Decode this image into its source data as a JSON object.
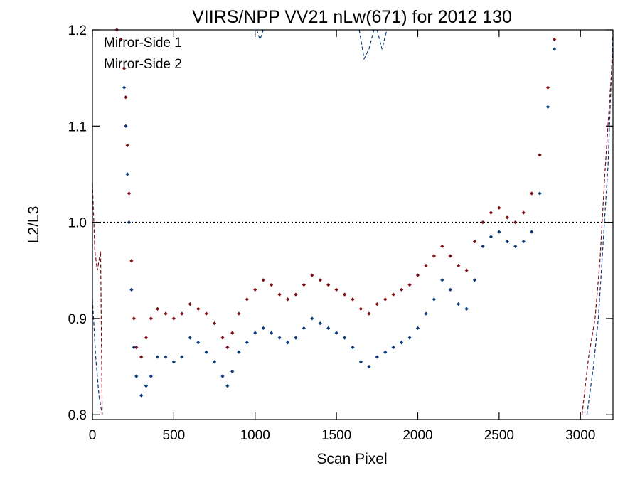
{
  "chart_data": {
    "type": "scatter",
    "title": "VIIRS/NPP VV21 nLw(671) for 2012 130",
    "xlabel": "Scan Pixel",
    "ylabel": "L2/L3",
    "xlim": [
      0,
      3200
    ],
    "ylim": [
      0.795,
      1.2
    ],
    "x_ticks": [
      0,
      500,
      1000,
      1500,
      2000,
      2500,
      3000
    ],
    "x_tick_labels": [
      "0",
      "500",
      "1000",
      "1500",
      "2000",
      "2500",
      "3000"
    ],
    "y_ticks": [
      0.8,
      0.9,
      1.0,
      1.1,
      1.2
    ],
    "y_tick_labels": [
      "0.8",
      "0.9",
      "1.0",
      "1.1",
      "1.2"
    ],
    "reference_line": 1.0,
    "grid": false,
    "legend_position": "top-left",
    "series": [
      {
        "name": "Mirror-Side 1",
        "color": "#0b3a7a",
        "points": [
          [
            150,
            1.2
          ],
          [
            175,
            1.19
          ],
          [
            195,
            1.14
          ],
          [
            205,
            1.1
          ],
          [
            215,
            1.05
          ],
          [
            225,
            1.0
          ],
          [
            240,
            0.93
          ],
          [
            255,
            0.87
          ],
          [
            270,
            0.84
          ],
          [
            300,
            0.82
          ],
          [
            330,
            0.83
          ],
          [
            360,
            0.84
          ],
          [
            400,
            0.86
          ],
          [
            450,
            0.86
          ],
          [
            500,
            0.855
          ],
          [
            550,
            0.86
          ],
          [
            600,
            0.88
          ],
          [
            650,
            0.875
          ],
          [
            700,
            0.865
          ],
          [
            750,
            0.855
          ],
          [
            800,
            0.84
          ],
          [
            830,
            0.83
          ],
          [
            860,
            0.845
          ],
          [
            900,
            0.865
          ],
          [
            950,
            0.875
          ],
          [
            1000,
            0.885
          ],
          [
            1050,
            0.89
          ],
          [
            1100,
            0.885
          ],
          [
            1150,
            0.88
          ],
          [
            1200,
            0.875
          ],
          [
            1250,
            0.88
          ],
          [
            1300,
            0.89
          ],
          [
            1350,
            0.9
          ],
          [
            1400,
            0.895
          ],
          [
            1450,
            0.89
          ],
          [
            1500,
            0.885
          ],
          [
            1550,
            0.88
          ],
          [
            1600,
            0.87
          ],
          [
            1650,
            0.855
          ],
          [
            1700,
            0.85
          ],
          [
            1750,
            0.86
          ],
          [
            1800,
            0.865
          ],
          [
            1850,
            0.87
          ],
          [
            1900,
            0.875
          ],
          [
            1950,
            0.88
          ],
          [
            2000,
            0.89
          ],
          [
            2050,
            0.905
          ],
          [
            2100,
            0.92
          ],
          [
            2150,
            0.94
          ],
          [
            2200,
            0.93
          ],
          [
            2250,
            0.915
          ],
          [
            2300,
            0.91
          ],
          [
            2350,
            0.94
          ],
          [
            2400,
            0.975
          ],
          [
            2450,
            0.985
          ],
          [
            2500,
            0.99
          ],
          [
            2550,
            0.98
          ],
          [
            2600,
            0.975
          ],
          [
            2650,
            0.98
          ],
          [
            2700,
            0.99
          ],
          [
            2750,
            1.03
          ],
          [
            2800,
            1.12
          ],
          [
            2840,
            1.18
          ]
        ]
      },
      {
        "name": "Mirror-Side 2",
        "color": "#7a0e12",
        "points": [
          [
            150,
            1.2
          ],
          [
            175,
            1.19
          ],
          [
            195,
            1.16
          ],
          [
            205,
            1.13
          ],
          [
            215,
            1.08
          ],
          [
            225,
            1.03
          ],
          [
            240,
            0.96
          ],
          [
            255,
            0.9
          ],
          [
            270,
            0.87
          ],
          [
            300,
            0.86
          ],
          [
            330,
            0.88
          ],
          [
            360,
            0.9
          ],
          [
            400,
            0.91
          ],
          [
            450,
            0.905
          ],
          [
            500,
            0.9
          ],
          [
            550,
            0.905
          ],
          [
            600,
            0.915
          ],
          [
            650,
            0.91
          ],
          [
            700,
            0.905
          ],
          [
            750,
            0.895
          ],
          [
            800,
            0.88
          ],
          [
            830,
            0.87
          ],
          [
            860,
            0.885
          ],
          [
            900,
            0.905
          ],
          [
            950,
            0.92
          ],
          [
            1000,
            0.93
          ],
          [
            1050,
            0.94
          ],
          [
            1100,
            0.935
          ],
          [
            1150,
            0.925
          ],
          [
            1200,
            0.92
          ],
          [
            1250,
            0.925
          ],
          [
            1300,
            0.935
          ],
          [
            1350,
            0.945
          ],
          [
            1400,
            0.94
          ],
          [
            1450,
            0.935
          ],
          [
            1500,
            0.93
          ],
          [
            1550,
            0.925
          ],
          [
            1600,
            0.92
          ],
          [
            1650,
            0.91
          ],
          [
            1700,
            0.905
          ],
          [
            1750,
            0.915
          ],
          [
            1800,
            0.92
          ],
          [
            1850,
            0.925
          ],
          [
            1900,
            0.93
          ],
          [
            1950,
            0.935
          ],
          [
            2000,
            0.945
          ],
          [
            2050,
            0.955
          ],
          [
            2100,
            0.965
          ],
          [
            2150,
            0.975
          ],
          [
            2200,
            0.965
          ],
          [
            2250,
            0.955
          ],
          [
            2300,
            0.95
          ],
          [
            2350,
            0.98
          ],
          [
            2400,
            1.0
          ],
          [
            2450,
            1.01
          ],
          [
            2500,
            1.015
          ],
          [
            2550,
            1.005
          ],
          [
            2600,
            1.0
          ],
          [
            2650,
            1.01
          ],
          [
            2700,
            1.03
          ],
          [
            2750,
            1.07
          ],
          [
            2800,
            1.14
          ],
          [
            2840,
            1.19
          ]
        ]
      }
    ],
    "edge_lines": [
      {
        "color": "#0b3a7a",
        "points": [
          [
            0,
            0.92
          ],
          [
            20,
            0.86
          ],
          [
            40,
            0.82
          ],
          [
            60,
            0.8
          ]
        ]
      },
      {
        "color": "#7a0e12",
        "points": [
          [
            0,
            1.04
          ],
          [
            15,
            0.97
          ],
          [
            30,
            0.95
          ],
          [
            50,
            0.97
          ],
          [
            60,
            0.8
          ]
        ]
      },
      {
        "color": "#0b3a7a",
        "points": [
          [
            3040,
            0.8
          ],
          [
            3080,
            0.85
          ],
          [
            3110,
            0.9
          ],
          [
            3140,
            0.98
          ],
          [
            3170,
            1.06
          ],
          [
            3200,
            1.2
          ]
        ]
      },
      {
        "color": "#7a0e12",
        "points": [
          [
            3010,
            0.8
          ],
          [
            3050,
            0.86
          ],
          [
            3090,
            0.9
          ],
          [
            3120,
            0.96
          ],
          [
            3150,
            1.05
          ],
          [
            3200,
            1.18
          ]
        ]
      },
      {
        "color": "#0b3a7a",
        "points": [
          [
            1010,
            1.2
          ],
          [
            1030,
            1.19
          ],
          [
            1050,
            1.2
          ]
        ]
      },
      {
        "color": "#0b3a7a",
        "points": [
          [
            1640,
            1.2
          ],
          [
            1670,
            1.17
          ],
          [
            1700,
            1.18
          ],
          [
            1730,
            1.2
          ]
        ]
      },
      {
        "color": "#0b3a7a",
        "points": [
          [
            1750,
            1.2
          ],
          [
            1780,
            1.18
          ],
          [
            1810,
            1.2
          ]
        ]
      }
    ]
  }
}
